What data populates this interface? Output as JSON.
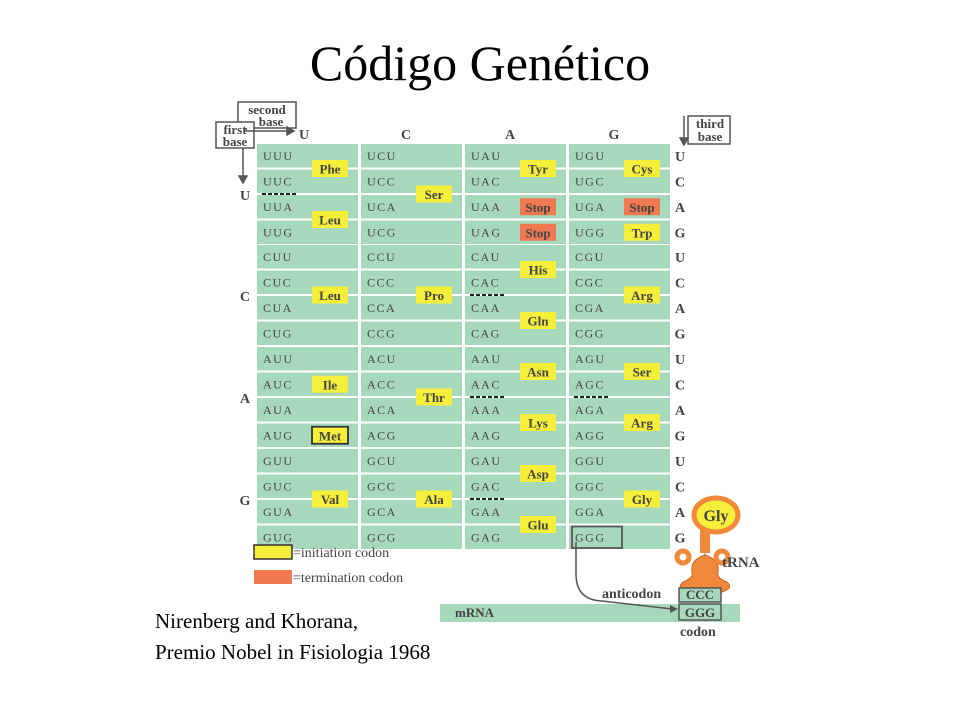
{
  "title": "Código Genético",
  "labels": {
    "first_base": [
      "first",
      "base"
    ],
    "second_base": [
      "second",
      "base"
    ],
    "third_base": [
      "third",
      "base"
    ]
  },
  "bases": [
    "U",
    "C",
    "A",
    "G"
  ],
  "table": [
    [
      {
        "codons": [
          "UUU",
          "UUC",
          "UUA",
          "UUG"
        ],
        "aa": [
          {
            "name": "Phe",
            "type": "amino",
            "span": [
              0,
              1
            ]
          },
          {
            "name": "Leu",
            "type": "amino",
            "span": [
              2,
              3
            ]
          }
        ]
      },
      {
        "codons": [
          "UCU",
          "UCC",
          "UCA",
          "UCG"
        ],
        "aa": [
          {
            "name": "Ser",
            "type": "amino",
            "span": [
              0,
              3
            ]
          }
        ]
      },
      {
        "codons": [
          "UAU",
          "UAC",
          "UAA",
          "UAG"
        ],
        "aa": [
          {
            "name": "Tyr",
            "type": "amino",
            "span": [
              0,
              1
            ]
          },
          {
            "name": "Stop",
            "type": "stop",
            "span": [
              2,
              2
            ]
          },
          {
            "name": "Stop",
            "type": "stop",
            "span": [
              3,
              3
            ]
          }
        ]
      },
      {
        "codons": [
          "UGU",
          "UGC",
          "UGA",
          "UGG"
        ],
        "aa": [
          {
            "name": "Cys",
            "type": "amino",
            "span": [
              0,
              1
            ]
          },
          {
            "name": "Stop",
            "type": "stop",
            "span": [
              2,
              2
            ]
          },
          {
            "name": "Trp",
            "type": "amino",
            "span": [
              3,
              3
            ]
          }
        ]
      }
    ],
    [
      {
        "codons": [
          "CUU",
          "CUC",
          "CUA",
          "CUG"
        ],
        "aa": [
          {
            "name": "Leu",
            "type": "amino",
            "span": [
              0,
              3
            ]
          }
        ]
      },
      {
        "codons": [
          "CCU",
          "CCC",
          "CCA",
          "CCG"
        ],
        "aa": [
          {
            "name": "Pro",
            "type": "amino",
            "span": [
              0,
              3
            ]
          }
        ]
      },
      {
        "codons": [
          "CAU",
          "CAC",
          "CAA",
          "CAG"
        ],
        "aa": [
          {
            "name": "His",
            "type": "amino",
            "span": [
              0,
              1
            ]
          },
          {
            "name": "Gln",
            "type": "amino",
            "span": [
              2,
              3
            ]
          }
        ]
      },
      {
        "codons": [
          "CGU",
          "CGC",
          "CGA",
          "CGG"
        ],
        "aa": [
          {
            "name": "Arg",
            "type": "amino",
            "span": [
              0,
              3
            ]
          }
        ]
      }
    ],
    [
      {
        "codons": [
          "AUU",
          "AUC",
          "AUA",
          "AUG"
        ],
        "aa": [
          {
            "name": "Ile",
            "type": "amino",
            "span": [
              0,
              2
            ]
          },
          {
            "name": "Met",
            "type": "start",
            "span": [
              3,
              3
            ]
          }
        ]
      },
      {
        "codons": [
          "ACU",
          "ACC",
          "ACA",
          "ACG"
        ],
        "aa": [
          {
            "name": "Thr",
            "type": "amino",
            "span": [
              0,
              3
            ]
          }
        ]
      },
      {
        "codons": [
          "AAU",
          "AAC",
          "AAA",
          "AAG"
        ],
        "aa": [
          {
            "name": "Asn",
            "type": "amino",
            "span": [
              0,
              1
            ]
          },
          {
            "name": "Lys",
            "type": "amino",
            "span": [
              2,
              3
            ]
          }
        ]
      },
      {
        "codons": [
          "AGU",
          "AGC",
          "AGA",
          "AGG"
        ],
        "aa": [
          {
            "name": "Ser",
            "type": "amino",
            "span": [
              0,
              1
            ]
          },
          {
            "name": "Arg",
            "type": "amino",
            "span": [
              2,
              3
            ]
          }
        ]
      }
    ],
    [
      {
        "codons": [
          "GUU",
          "GUC",
          "GUA",
          "GUG"
        ],
        "aa": [
          {
            "name": "Val",
            "type": "amino",
            "span": [
              0,
              3
            ]
          }
        ]
      },
      {
        "codons": [
          "GCU",
          "GCC",
          "GCA",
          "GCG"
        ],
        "aa": [
          {
            "name": "Ala",
            "type": "amino",
            "span": [
              0,
              3
            ]
          }
        ]
      },
      {
        "codons": [
          "GAU",
          "GAC",
          "GAA",
          "GAG"
        ],
        "aa": [
          {
            "name": "Asp",
            "type": "amino",
            "span": [
              0,
              1
            ]
          },
          {
            "name": "Glu",
            "type": "amino",
            "span": [
              2,
              3
            ]
          }
        ]
      },
      {
        "codons": [
          "GGU",
          "GGC",
          "GGA",
          "GGG"
        ],
        "aa": [
          {
            "name": "Gly",
            "type": "amino",
            "span": [
              0,
              3
            ]
          }
        ]
      }
    ]
  ],
  "legend": {
    "initiation": "=initiation codon",
    "termination": "=termination codon"
  },
  "trna": {
    "aa": "Gly",
    "label": "tRNA",
    "anticodon_label": "anticodon",
    "anticodon": "CCC",
    "codon": "GGG",
    "codon_label": "codon",
    "mrna_label": "mRNA"
  },
  "caption": {
    "line1": "Nirenberg and Khorana,",
    "line2": "Premio Nobel in Fisiologia 1968"
  },
  "colors": {
    "cell": "#a8d8bc",
    "amino": "#f5ef3c",
    "stop": "#ef7a52",
    "label_text": "#444444",
    "trna": "#f08a3a"
  }
}
